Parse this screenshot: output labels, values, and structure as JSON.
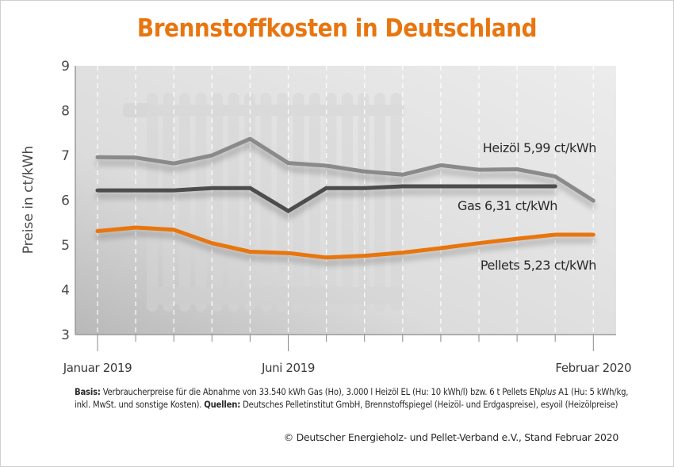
{
  "chart_data": {
    "type": "line",
    "title": "Brennstoffkosten in Deutschland",
    "xlabel": "",
    "ylabel": "Preise in ct/kWh",
    "ylim": [
      3,
      9
    ],
    "yticks": [
      3,
      4,
      5,
      6,
      7,
      8,
      9
    ],
    "x": [
      "Jan 2019",
      "Feb 2019",
      "Mär 2019",
      "Apr 2019",
      "Mai 2019",
      "Jun 2019",
      "Jul 2019",
      "Aug 2019",
      "Sep 2019",
      "Okt 2019",
      "Nov 2019",
      "Dez 2019",
      "Jan 2020",
      "Feb 2020"
    ],
    "x_tick_labels": [
      {
        "index": 0,
        "label": "Januar 2019"
      },
      {
        "index": 5,
        "label": "Juni 2019"
      },
      {
        "index": 13,
        "label": "Februar 2020"
      }
    ],
    "grid": "vertical dashed",
    "series": [
      {
        "name": "Heizöl",
        "label": "Heizöl 5,99 ct/kWh",
        "color": "#8a8a8a",
        "values": [
          6.96,
          6.95,
          6.82,
          7.0,
          7.37,
          6.83,
          6.77,
          6.64,
          6.57,
          6.78,
          6.68,
          6.69,
          6.53,
          5.99
        ]
      },
      {
        "name": "Gas",
        "label": "Gas  6,31 ct/kWh",
        "color": "#4d4d4d",
        "values": [
          6.22,
          6.22,
          6.22,
          6.27,
          6.27,
          5.76,
          6.27,
          6.27,
          6.31,
          6.31,
          6.31,
          6.31,
          6.31,
          null
        ]
      },
      {
        "name": "Pellets",
        "label": "Pellets  5,23 ct/kWh",
        "color": "#e8750f",
        "values": [
          5.31,
          5.39,
          5.34,
          5.04,
          4.85,
          4.82,
          4.72,
          4.76,
          4.83,
          4.93,
          5.04,
          5.14,
          5.23,
          5.23
        ]
      }
    ]
  },
  "footnote": {
    "basis_label": "Basis:",
    "basis_text": " Verbraucherpreise für die Abnahme von 33.540 kWh Gas (Ho), 3.000 l Heizöl EL (Hu: 10 kWh/l) bzw. 6 t Pellets EN",
    "plus": "plus",
    "basis_text2": " A1 (Hu: 5 kWh/kg, inkl. MwSt. und sonstige Kosten). ",
    "sources_label": "Quellen:",
    "sources_text": " Deutsches Pelletinstitut GmbH, Brennstoffspiegel (Heizöl- und Erdgaspreise), esyoil (Heizölpreise)"
  },
  "copyright": "© Deutscher Energieholz- und Pellet-Verband e.V., Stand Februar 2020",
  "colors": {
    "title": "#e8750f",
    "pellets": "#e8750f",
    "heizoel": "#8a8a8a",
    "gas": "#4d4d4d"
  }
}
